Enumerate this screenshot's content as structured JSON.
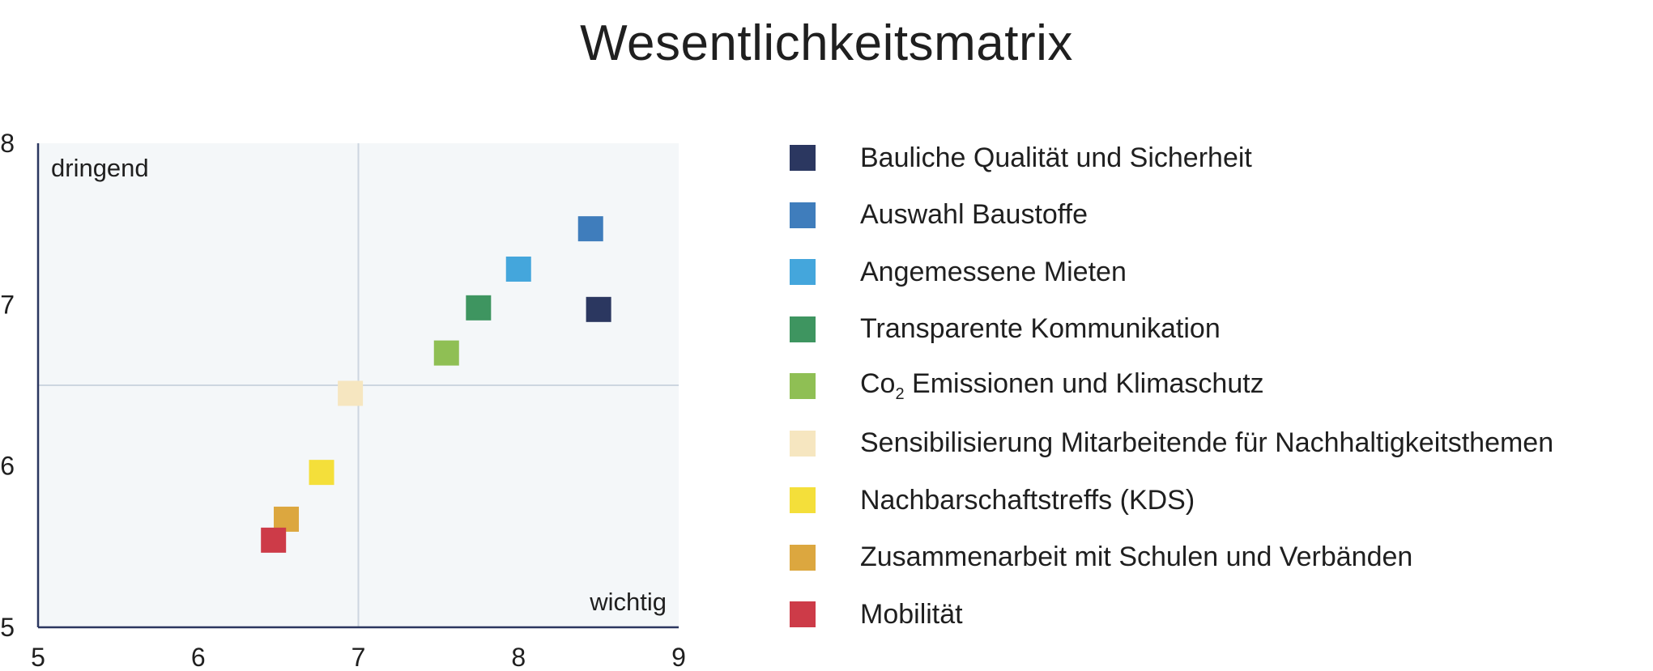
{
  "chart_data": {
    "type": "scatter",
    "title": "Wesentlichkeitsmatrix",
    "xlim": [
      5,
      9
    ],
    "ylim": [
      5,
      8
    ],
    "x_ticks": [
      5,
      6,
      7,
      8,
      9
    ],
    "y_ticks": [
      5,
      6,
      7,
      8
    ],
    "reference_lines": {
      "x": 7,
      "y": 6.5
    },
    "quadrant_labels": {
      "top_left": "dringend",
      "bottom_right": "wichtig"
    },
    "legend_position": "right",
    "marker": "square",
    "series": [
      {
        "name": "Bauliche Qualität und Sicherheit",
        "color": "#2b3760",
        "x": 8.5,
        "y": 6.97
      },
      {
        "name": "Auswahl Baustoffe",
        "color": "#3f7dbc",
        "x": 8.45,
        "y": 7.47
      },
      {
        "name": "Angemessene Mieten",
        "color": "#44a6dc",
        "x": 8.0,
        "y": 7.22
      },
      {
        "name": "Transparente Kommunikation",
        "color": "#3e9560",
        "x": 7.75,
        "y": 6.98
      },
      {
        "name": "Co2 Emissionen und Klimaschutz",
        "label_main": "Co",
        "label_sub": "2",
        "label_rest": " Emissionen und Klimaschutz",
        "color": "#8fbf54",
        "x": 7.55,
        "y": 6.7
      },
      {
        "name": "Sensibilisierung Mitarbeitende für Nachhaltigkeitsthemen",
        "color": "#f6e6c0",
        "x": 6.95,
        "y": 6.45
      },
      {
        "name": "Nachbarschaftstreffs (KDS)",
        "color": "#f4df3a",
        "x": 6.77,
        "y": 5.96
      },
      {
        "name": "Zusammenarbeit mit Schulen und Verbänden",
        "color": "#dca73f",
        "x": 6.55,
        "y": 5.67
      },
      {
        "name": "Mobilität",
        "color": "#cd3b48",
        "x": 6.47,
        "y": 5.54
      }
    ]
  }
}
